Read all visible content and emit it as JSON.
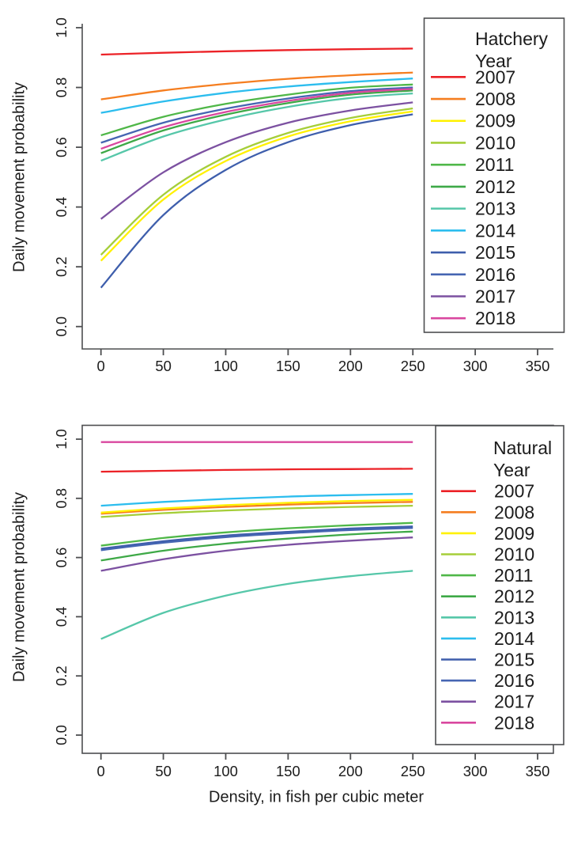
{
  "page": {
    "background": "#ffffff",
    "axis_color": "#4d4e50",
    "text_color": "#1c1c1c"
  },
  "chart_data": [
    {
      "type": "line",
      "panel": "top",
      "legend_title_lines": [
        "Hatchery",
        "Year"
      ],
      "ylabel": "Daily movement probability",
      "xlabel": "",
      "x": [
        0,
        50,
        100,
        150,
        200,
        250
      ],
      "xlim": [
        0,
        350
      ],
      "ylim": [
        0.0,
        1.0
      ],
      "x_ticks": [
        "0",
        "50",
        "100",
        "150",
        "200",
        "250",
        "300",
        "350"
      ],
      "y_ticks": [
        "0.0",
        "0.2",
        "0.4",
        "0.6",
        "0.8",
        "1.0"
      ],
      "legend_position": "topright",
      "grid": false,
      "series": [
        {
          "name": "2007",
          "color": "#ec2227",
          "values": [
            0.91,
            0.916,
            0.921,
            0.925,
            0.928,
            0.93
          ]
        },
        {
          "name": "2008",
          "color": "#f57e20",
          "values": [
            0.76,
            0.79,
            0.812,
            0.829,
            0.841,
            0.85
          ]
        },
        {
          "name": "2009",
          "color": "#fff100",
          "values": [
            0.22,
            0.425,
            0.554,
            0.636,
            0.687,
            0.72
          ]
        },
        {
          "name": "2010",
          "color": "#a5ce39",
          "values": [
            0.24,
            0.441,
            0.568,
            0.648,
            0.698,
            0.73
          ]
        },
        {
          "name": "2011",
          "color": "#4fb748",
          "values": [
            0.64,
            0.702,
            0.745,
            0.776,
            0.799,
            0.81
          ]
        },
        {
          "name": "2012",
          "color": "#3ea947",
          "values": [
            0.58,
            0.656,
            0.709,
            0.748,
            0.776,
            0.79
          ]
        },
        {
          "name": "2013",
          "color": "#56c7a9",
          "values": [
            0.555,
            0.636,
            0.693,
            0.735,
            0.765,
            0.78
          ]
        },
        {
          "name": "2014",
          "color": "#2cbdee",
          "values": [
            0.715,
            0.753,
            0.782,
            0.803,
            0.818,
            0.83
          ]
        },
        {
          "name": "2015",
          "color": "#3e5eac",
          "values": [
            0.13,
            0.373,
            0.524,
            0.617,
            0.674,
            0.71
          ]
        },
        {
          "name": "2016",
          "color": "#4565b2",
          "values": [
            0.615,
            0.682,
            0.729,
            0.763,
            0.788,
            0.8
          ]
        },
        {
          "name": "2017",
          "color": "#7c51a1",
          "values": [
            0.36,
            0.516,
            0.617,
            0.682,
            0.723,
            0.75
          ]
        },
        {
          "name": "2018",
          "color": "#d9479f",
          "values": [
            0.595,
            0.667,
            0.718,
            0.755,
            0.782,
            0.795
          ]
        }
      ]
    },
    {
      "type": "line",
      "panel": "bottom",
      "legend_title_lines": [
        "Natural",
        "Year"
      ],
      "ylabel": "Daily movement probability",
      "xlabel": "Density, in fish per cubic meter",
      "x": [
        0,
        50,
        100,
        150,
        200,
        250
      ],
      "xlim": [
        0,
        350
      ],
      "ylim": [
        0.0,
        1.0
      ],
      "x_ticks": [
        "0",
        "50",
        "100",
        "150",
        "200",
        "250",
        "300",
        "350"
      ],
      "y_ticks": [
        "0.0",
        "0.2",
        "0.4",
        "0.6",
        "0.8",
        "1.0"
      ],
      "legend_position": "topright",
      "grid": false,
      "series": [
        {
          "name": "2007",
          "color": "#ec2227",
          "values": [
            0.89,
            0.893,
            0.896,
            0.898,
            0.899,
            0.9
          ]
        },
        {
          "name": "2008",
          "color": "#f57e20",
          "values": [
            0.748,
            0.761,
            0.771,
            0.779,
            0.784,
            0.788
          ]
        },
        {
          "name": "2009",
          "color": "#fff100",
          "values": [
            0.752,
            0.766,
            0.777,
            0.785,
            0.791,
            0.795
          ]
        },
        {
          "name": "2010",
          "color": "#a5ce39",
          "values": [
            0.737,
            0.75,
            0.759,
            0.766,
            0.771,
            0.775
          ]
        },
        {
          "name": "2011",
          "color": "#4fb748",
          "values": [
            0.64,
            0.666,
            0.685,
            0.699,
            0.709,
            0.717
          ]
        },
        {
          "name": "2012",
          "color": "#3ea947",
          "values": [
            0.59,
            0.623,
            0.647,
            0.664,
            0.678,
            0.688
          ]
        },
        {
          "name": "2013",
          "color": "#56c7a9",
          "values": [
            0.325,
            0.413,
            0.471,
            0.511,
            0.537,
            0.555
          ]
        },
        {
          "name": "2014",
          "color": "#2cbdee",
          "values": [
            0.775,
            0.788,
            0.798,
            0.806,
            0.811,
            0.815
          ]
        },
        {
          "name": "2015",
          "color": "#3e5eac",
          "values": [
            0.63,
            0.655,
            0.674,
            0.687,
            0.698,
            0.705
          ]
        },
        {
          "name": "2016",
          "color": "#4565b2",
          "values": [
            0.625,
            0.65,
            0.669,
            0.682,
            0.693,
            0.7
          ]
        },
        {
          "name": "2017",
          "color": "#7c51a1",
          "values": [
            0.555,
            0.594,
            0.623,
            0.643,
            0.657,
            0.668
          ]
        },
        {
          "name": "2018",
          "color": "#d9479f",
          "values": [
            0.99,
            0.99,
            0.99,
            0.99,
            0.99,
            0.99
          ]
        }
      ]
    }
  ]
}
